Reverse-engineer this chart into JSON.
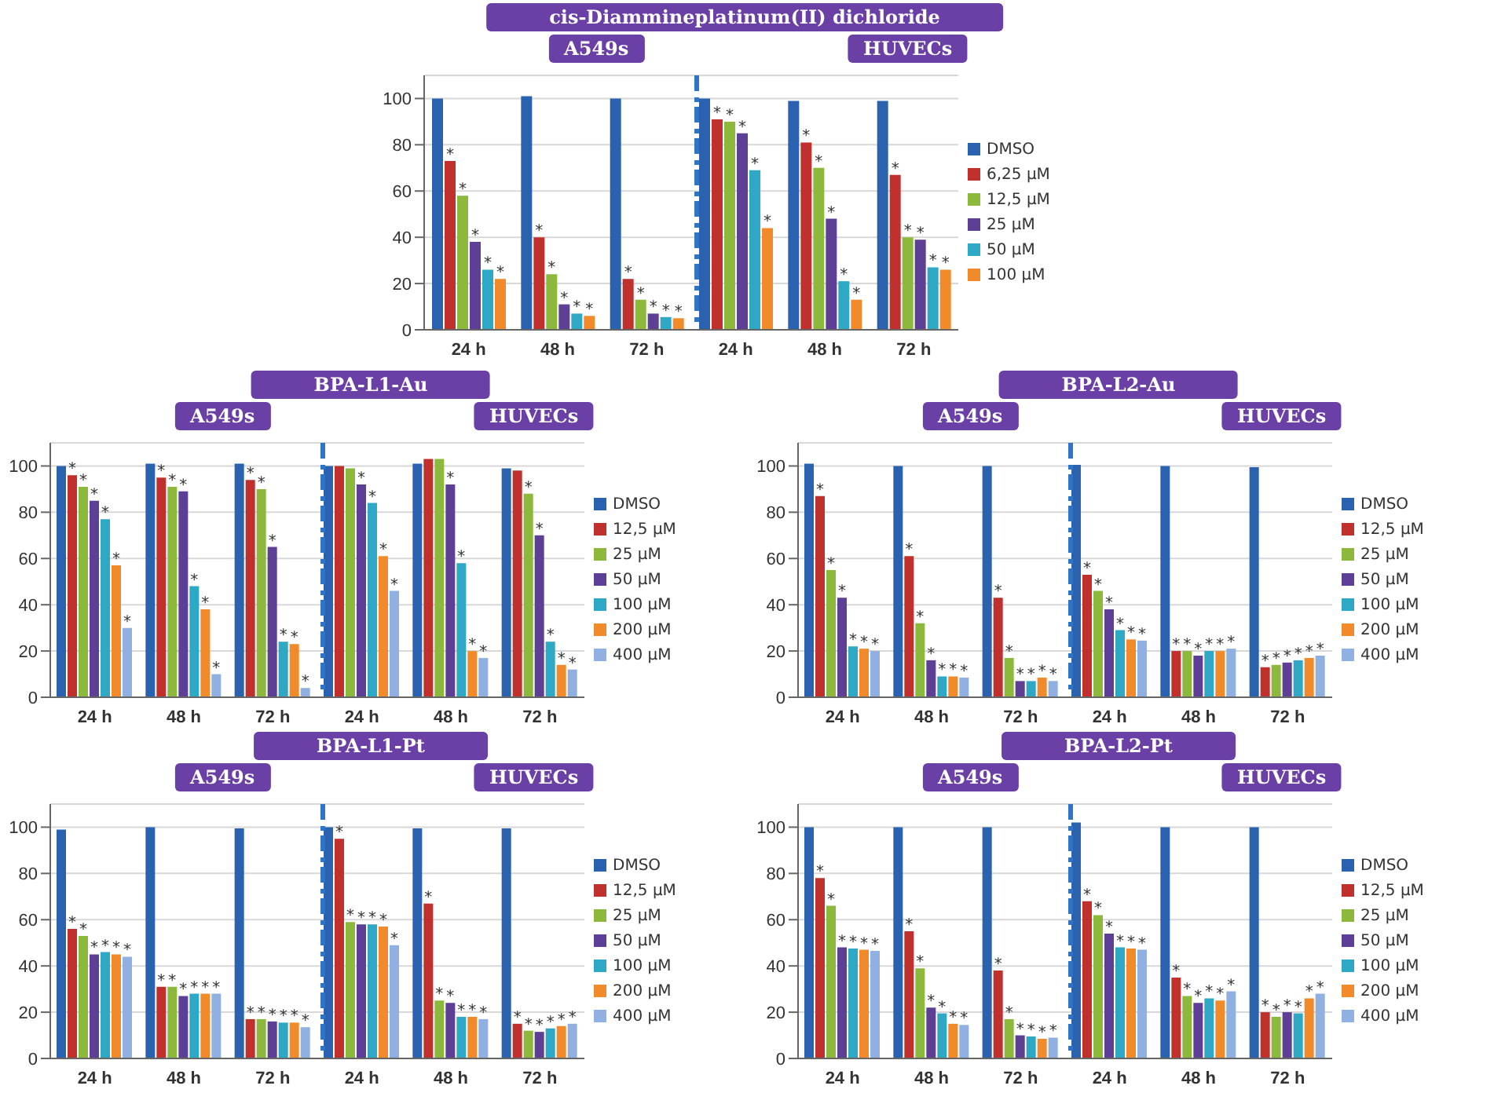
{
  "chart_data": [
    {
      "type": "bar",
      "title": "cis-Diammineplatinum(II) dichloride",
      "annotations": [
        "A549s",
        "HUVECs"
      ],
      "categories": [
        "24 h",
        "48 h",
        "72 h",
        "24 h",
        "48 h",
        "72 h"
      ],
      "ylim": [
        0,
        110
      ],
      "yticks": [
        0,
        20,
        40,
        60,
        80,
        100
      ],
      "grid": "y",
      "legend": "right",
      "series": [
        {
          "name": "DMSO",
          "color": "#2a62b0",
          "values": [
            100,
            101,
            100,
            100,
            99,
            99
          ]
        },
        {
          "name": "6,25 µM",
          "color": "#c0302c",
          "values": [
            73,
            40,
            22,
            91,
            81,
            67
          ],
          "value_labels": [
            "*",
            "*",
            "*",
            "*",
            "*",
            "*"
          ]
        },
        {
          "name": "12,5 µM",
          "color": "#8cb83c",
          "values": [
            58,
            24,
            13,
            90,
            70,
            40
          ],
          "value_labels": [
            "*",
            "*",
            "*",
            "*",
            "*",
            "*"
          ]
        },
        {
          "name": "25 µM",
          "color": "#5e3f96",
          "values": [
            38,
            11,
            7,
            85,
            48,
            39
          ],
          "value_labels": [
            "*",
            "*",
            "*",
            "*",
            "*",
            "*"
          ]
        },
        {
          "name": "50 µM",
          "color": "#2fa8c6",
          "values": [
            26,
            7,
            5.5,
            69,
            21,
            27
          ],
          "value_labels": [
            "*",
            "*",
            "*",
            "*",
            "*",
            "*"
          ]
        },
        {
          "name": "100 µM",
          "color": "#f08a2a",
          "values": [
            22,
            6,
            5,
            44,
            13,
            26
          ],
          "value_labels": [
            "*",
            "*",
            "*",
            "*",
            "*",
            "*"
          ]
        }
      ]
    },
    {
      "type": "bar",
      "title": "BPA-L1-Au",
      "annotations": [
        "A549s",
        "HUVECs"
      ],
      "categories": [
        "24 h",
        "48 h",
        "72 h",
        "24 h",
        "48 h",
        "72 h"
      ],
      "ylim": [
        0,
        110
      ],
      "yticks": [
        0,
        20,
        40,
        60,
        80,
        100
      ],
      "grid": "y",
      "legend": "right",
      "series": [
        {
          "name": "DMSO",
          "color": "#2a62b0",
          "values": [
            100,
            101,
            101,
            100,
            101,
            99
          ]
        },
        {
          "name": "12,5 µM",
          "color": "#c0302c",
          "values": [
            96,
            95,
            94,
            100,
            103,
            98
          ],
          "value_labels": [
            "*",
            "*",
            "*",
            null,
            null,
            null
          ]
        },
        {
          "name": "25 µM",
          "color": "#8cb83c",
          "values": [
            91,
            91,
            90,
            99,
            103,
            88
          ],
          "value_labels": [
            "*",
            "*",
            "*",
            null,
            null,
            "*"
          ]
        },
        {
          "name": "50 µM",
          "color": "#5e3f96",
          "values": [
            85,
            89,
            65,
            92,
            92,
            70
          ],
          "value_labels": [
            "*",
            "*",
            "*",
            "*",
            "*",
            "*"
          ]
        },
        {
          "name": "100 µM",
          "color": "#2fa8c6",
          "values": [
            77,
            48,
            24,
            84,
            58,
            24
          ],
          "value_labels": [
            "*",
            "*",
            "*",
            "*",
            "*",
            "*"
          ]
        },
        {
          "name": "200 µM",
          "color": "#f08a2a",
          "values": [
            57,
            38,
            23,
            61,
            20,
            14
          ],
          "value_labels": [
            "*",
            "*",
            "*",
            "*",
            "*",
            "*"
          ]
        },
        {
          "name": "400 µM",
          "color": "#8fb0e0",
          "values": [
            30,
            10,
            4,
            46,
            17,
            12
          ],
          "value_labels": [
            "*",
            "*",
            "*",
            "*",
            "*",
            "*"
          ]
        }
      ]
    },
    {
      "type": "bar",
      "title": "BPA-L2-Au",
      "annotations": [
        "A549s",
        "HUVECs"
      ],
      "categories": [
        "24 h",
        "48 h",
        "72 h",
        "24 h",
        "48 h",
        "72 h"
      ],
      "ylim": [
        0,
        110
      ],
      "yticks": [
        0,
        20,
        40,
        60,
        80,
        100
      ],
      "grid": "y",
      "legend": "right",
      "series": [
        {
          "name": "DMSO",
          "color": "#2a62b0",
          "values": [
            101,
            100,
            100,
            100.5,
            100,
            99.5
          ]
        },
        {
          "name": "12,5 µM",
          "color": "#c0302c",
          "values": [
            87,
            61,
            43,
            53,
            20,
            13
          ],
          "value_labels": [
            "*",
            "*",
            "*",
            "*",
            "*",
            "*"
          ]
        },
        {
          "name": "25 µM",
          "color": "#8cb83c",
          "values": [
            55,
            32,
            17,
            46,
            20,
            14
          ],
          "value_labels": [
            "*",
            "*",
            "*",
            "*",
            "*",
            "*"
          ]
        },
        {
          "name": "50 µM",
          "color": "#5e3f96",
          "values": [
            43,
            16,
            7,
            38,
            18,
            15
          ],
          "value_labels": [
            "*",
            "*",
            "*",
            "*",
            "*",
            "*"
          ]
        },
        {
          "name": "100 µM",
          "color": "#2fa8c6",
          "values": [
            22,
            9,
            7,
            29,
            20,
            16
          ],
          "value_labels": [
            "*",
            "*",
            "*",
            "*",
            "*",
            "*"
          ]
        },
        {
          "name": "200 µM",
          "color": "#f08a2a",
          "values": [
            21,
            9,
            8.5,
            25,
            20,
            17
          ],
          "value_labels": [
            "*",
            "*",
            "*",
            "*",
            "*",
            "*"
          ]
        },
        {
          "name": "400 µM",
          "color": "#8fb0e0",
          "values": [
            20,
            8.5,
            7,
            24.5,
            21,
            18
          ],
          "value_labels": [
            "*",
            "*",
            "*",
            "*",
            "*",
            "*"
          ]
        }
      ]
    },
    {
      "type": "bar",
      "title": "BPA-L1-Pt",
      "annotations": [
        "A549s",
        "HUVECs"
      ],
      "categories": [
        "24 h",
        "48 h",
        "72 h",
        "24 h",
        "48 h",
        "72 h"
      ],
      "ylim": [
        0,
        110
      ],
      "yticks": [
        0,
        20,
        40,
        60,
        80,
        100
      ],
      "grid": "y",
      "legend": "right",
      "series": [
        {
          "name": "DMSO",
          "color": "#2a62b0",
          "values": [
            99,
            100,
            99.5,
            100,
            99.5,
            99.5
          ]
        },
        {
          "name": "12,5 µM",
          "color": "#c0302c",
          "values": [
            56,
            31,
            17,
            95,
            67,
            15
          ],
          "value_labels": [
            "*",
            "*",
            "*",
            "*",
            "*",
            "*"
          ]
        },
        {
          "name": "25 µM",
          "color": "#8cb83c",
          "values": [
            53,
            31,
            17,
            59,
            25,
            12
          ],
          "value_labels": [
            "*",
            "*",
            "*",
            "*",
            "*",
            "*"
          ]
        },
        {
          "name": "50 µM",
          "color": "#5e3f96",
          "values": [
            45,
            27,
            16,
            58,
            24,
            11.5
          ],
          "value_labels": [
            "*",
            "*",
            "*",
            "*",
            "*",
            "*"
          ]
        },
        {
          "name": "100 µM",
          "color": "#2fa8c6",
          "values": [
            46,
            28,
            15.5,
            58,
            18,
            13
          ],
          "value_labels": [
            "*",
            "*",
            "*",
            "*",
            "*",
            "*"
          ]
        },
        {
          "name": "200 µM",
          "color": "#f08a2a",
          "values": [
            45,
            28,
            15.5,
            57,
            18,
            14
          ],
          "value_labels": [
            "*",
            "*",
            "*",
            "*",
            "*",
            "*"
          ]
        },
        {
          "name": "400 µM",
          "color": "#8fb0e0",
          "values": [
            44,
            28,
            13.5,
            49,
            17,
            15
          ],
          "value_labels": [
            "*",
            "*",
            "*",
            "*",
            "*",
            "*"
          ]
        }
      ]
    },
    {
      "type": "bar",
      "title": "BPA-L2-Pt",
      "annotations": [
        "A549s",
        "HUVECs"
      ],
      "categories": [
        "24 h",
        "48 h",
        "72 h",
        "24 h",
        "48 h",
        "72 h"
      ],
      "ylim": [
        0,
        110
      ],
      "yticks": [
        0,
        20,
        40,
        60,
        80,
        100
      ],
      "grid": "y",
      "legend": "right",
      "series": [
        {
          "name": "DMSO",
          "color": "#2a62b0",
          "values": [
            100,
            100,
            100,
            102,
            100,
            100
          ]
        },
        {
          "name": "12,5 µM",
          "color": "#c0302c",
          "values": [
            78,
            55,
            38,
            68,
            35,
            20
          ],
          "value_labels": [
            "*",
            "*",
            "*",
            "*",
            "*",
            "*"
          ]
        },
        {
          "name": "25 µM",
          "color": "#8cb83c",
          "values": [
            66,
            39,
            17,
            62,
            27,
            18
          ],
          "value_labels": [
            "*",
            "*",
            "*",
            "*",
            "*",
            "*"
          ]
        },
        {
          "name": "50 µM",
          "color": "#5e3f96",
          "values": [
            48,
            22,
            10,
            54,
            24,
            20
          ],
          "value_labels": [
            "*",
            "*",
            "*",
            "*",
            "*",
            "*"
          ]
        },
        {
          "name": "100 µM",
          "color": "#2fa8c6",
          "values": [
            47.5,
            19.5,
            9.5,
            48,
            26,
            19.5
          ],
          "value_labels": [
            "*",
            "*",
            "*",
            "*",
            "*",
            "*"
          ]
        },
        {
          "name": "200 µM",
          "color": "#f08a2a",
          "values": [
            47,
            15,
            8.5,
            47.5,
            25,
            26
          ],
          "value_labels": [
            "*",
            "*",
            "*",
            "*",
            "*",
            "*"
          ]
        },
        {
          "name": "400 µM",
          "color": "#8fb0e0",
          "values": [
            46.5,
            14.5,
            9,
            47,
            29,
            28
          ],
          "value_labels": [
            "*",
            "*",
            "*",
            "*",
            "*",
            "*"
          ]
        }
      ]
    }
  ]
}
